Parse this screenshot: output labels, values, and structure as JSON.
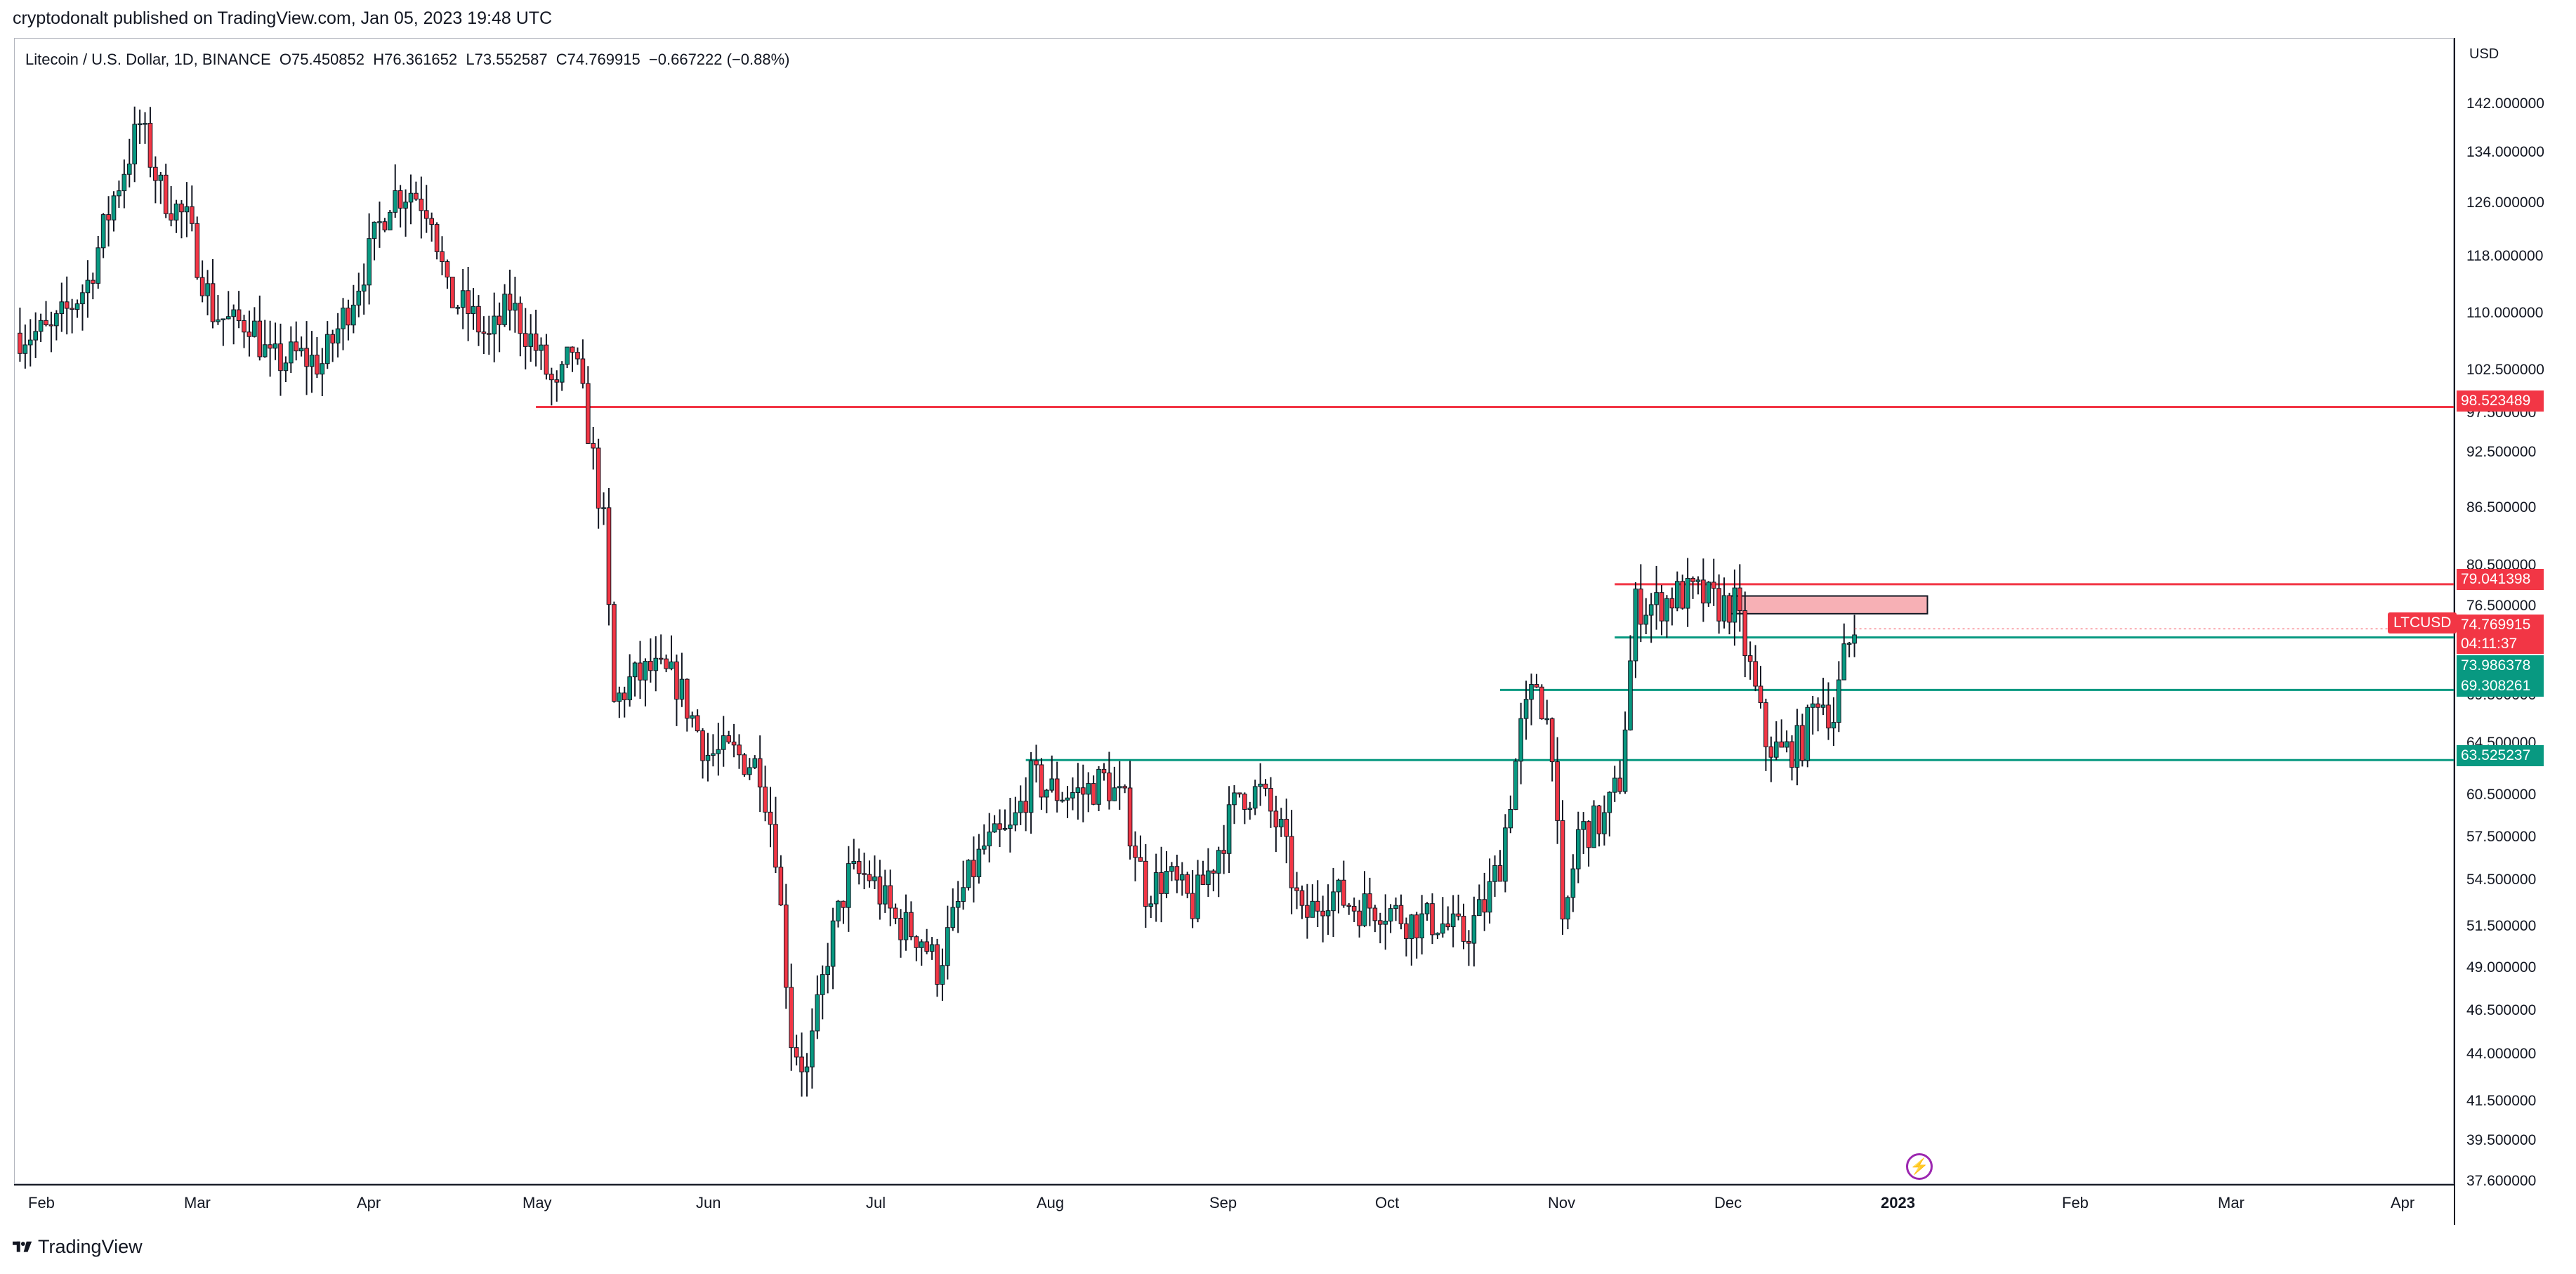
{
  "header": {
    "published": "cryptodonalt published on TradingView.com, Jan 05, 2023 19:48 UTC"
  },
  "legend": {
    "text": "Litecoin / U.S. Dollar, 1D, BINANCE  O75.450852  H76.361652  L73.552587  C74.769915  −0.667222 (−0.88%)"
  },
  "price_axis": {
    "currency": "USD",
    "ticks": [
      "142.000000",
      "134.000000",
      "126.000000",
      "118.000000",
      "110.000000",
      "102.500000",
      "97.500000",
      "92.500000",
      "86.500000",
      "80.500000",
      "76.500000",
      "69.500000",
      "64.500000",
      "60.500000",
      "57.500000",
      "54.500000",
      "51.500000",
      "49.000000",
      "46.500000",
      "44.000000",
      "41.500000",
      "39.500000",
      "37.600000"
    ]
  },
  "time_axis": {
    "labels": [
      "Feb",
      "Mar",
      "Apr",
      "May",
      "Jun",
      "Jul",
      "Aug",
      "Sep",
      "Oct",
      "Nov",
      "Dec",
      "2023",
      "Feb",
      "Mar",
      "Apr"
    ]
  },
  "levels": [
    {
      "label": "98.523489",
      "color": "#f23645"
    },
    {
      "label": "79.041398",
      "color": "#f23645"
    },
    {
      "label": "73.986378",
      "color": "#089981"
    },
    {
      "label": "69.308261",
      "color": "#089981"
    },
    {
      "label": "63.525237",
      "color": "#089981"
    }
  ],
  "current_price": {
    "ticker": "LTCUSD",
    "price": "74.769915",
    "countdown": "04:11:37",
    "color": "#f23645"
  },
  "footer": {
    "brand": "TradingView"
  },
  "chart_data": {
    "type": "candlestick",
    "title": "Litecoin / U.S. Dollar, 1D, BINANCE",
    "ylabel": "USD",
    "y_scale": "log",
    "ylim": [
      37.6,
      150
    ],
    "x_range": [
      "2022-01-17",
      "2023-04-30"
    ],
    "colors": {
      "up": "#089981",
      "down": "#f23645",
      "bar_outline": "#131722"
    },
    "horizontal_levels": [
      {
        "price": 98.523489,
        "color": "#f23645",
        "from": "2022-04-27"
      },
      {
        "price": 79.041398,
        "color": "#f23645",
        "from": "2022-11-20"
      },
      {
        "price": 73.986378,
        "color": "#089981",
        "from": "2022-11-20"
      },
      {
        "price": 69.308261,
        "color": "#089981",
        "from": "2022-10-29"
      },
      {
        "price": 63.525237,
        "color": "#089981",
        "from": "2022-07-30"
      }
    ],
    "zone": {
      "from": "2022-12-12",
      "to": "2023-01-19",
      "low": 76.2,
      "high": 77.9,
      "color": "#f7b0b5"
    },
    "price_path": [
      [
        "2022-01-18",
        108
      ],
      [
        "2022-01-24",
        108
      ],
      [
        "2022-01-31",
        115
      ],
      [
        "2022-02-05",
        128
      ],
      [
        "2022-02-10",
        140
      ],
      [
        "2022-02-14",
        129
      ],
      [
        "2022-02-19",
        124
      ],
      [
        "2022-02-24",
        111
      ],
      [
        "2022-02-28",
        109
      ],
      [
        "2022-03-03",
        110
      ],
      [
        "2022-03-07",
        104
      ],
      [
        "2022-03-12",
        105
      ],
      [
        "2022-03-17",
        104
      ],
      [
        "2022-03-21",
        110
      ],
      [
        "2022-03-26",
        119
      ],
      [
        "2022-03-30",
        128
      ],
      [
        "2022-04-03",
        129
      ],
      [
        "2022-04-07",
        126
      ],
      [
        "2022-04-10",
        113
      ],
      [
        "2022-04-14",
        111
      ],
      [
        "2022-04-18",
        107
      ],
      [
        "2022-04-22",
        112
      ],
      [
        "2022-04-27",
        106
      ],
      [
        "2022-05-01",
        100
      ],
      [
        "2022-05-04",
        106
      ],
      [
        "2022-05-07",
        96
      ],
      [
        "2022-05-10",
        85
      ],
      [
        "2022-05-12",
        68
      ],
      [
        "2022-05-15",
        70
      ],
      [
        "2022-05-19",
        71
      ],
      [
        "2022-05-24",
        70
      ],
      [
        "2022-05-30",
        64
      ],
      [
        "2022-06-04",
        64
      ],
      [
        "2022-06-09",
        63
      ],
      [
        "2022-06-12",
        57
      ],
      [
        "2022-06-15",
        45
      ],
      [
        "2022-06-18",
        43
      ],
      [
        "2022-06-22",
        50
      ],
      [
        "2022-06-26",
        55
      ],
      [
        "2022-06-30",
        55
      ],
      [
        "2022-07-05",
        52
      ],
      [
        "2022-07-10",
        51
      ],
      [
        "2022-07-13",
        49
      ],
      [
        "2022-07-18",
        54
      ],
      [
        "2022-07-22",
        57
      ],
      [
        "2022-07-27",
        58
      ],
      [
        "2022-07-31",
        62
      ],
      [
        "2022-08-05",
        61
      ],
      [
        "2022-08-10",
        61
      ],
      [
        "2022-08-14",
        62
      ],
      [
        "2022-08-18",
        60
      ],
      [
        "2022-08-22",
        54
      ],
      [
        "2022-08-26",
        55
      ],
      [
        "2022-08-31",
        53
      ],
      [
        "2022-09-04",
        56
      ],
      [
        "2022-09-09",
        61
      ],
      [
        "2022-09-13",
        61
      ],
      [
        "2022-09-17",
        58
      ],
      [
        "2022-09-21",
        52
      ],
      [
        "2022-09-26",
        54
      ],
      [
        "2022-10-01",
        53
      ],
      [
        "2022-10-06",
        53
      ],
      [
        "2022-10-12",
        52
      ],
      [
        "2022-10-17",
        52
      ],
      [
        "2022-10-22",
        51
      ],
      [
        "2022-10-26",
        53
      ],
      [
        "2022-10-29",
        56
      ],
      [
        "2022-11-02",
        66
      ],
      [
        "2022-11-05",
        70
      ],
      [
        "2022-11-08",
        65
      ],
      [
        "2022-11-10",
        51
      ],
      [
        "2022-11-13",
        58
      ],
      [
        "2022-11-18",
        59
      ],
      [
        "2022-11-21",
        62
      ],
      [
        "2022-11-24",
        77
      ],
      [
        "2022-11-28",
        77
      ],
      [
        "2022-12-02",
        78
      ],
      [
        "2022-12-06",
        78
      ],
      [
        "2022-12-10",
        77
      ],
      [
        "2022-12-13",
        77
      ],
      [
        "2022-12-16",
        71
      ],
      [
        "2022-12-19",
        65
      ],
      [
        "2022-12-22",
        64
      ],
      [
        "2022-12-26",
        65
      ],
      [
        "2022-12-29",
        69
      ],
      [
        "2023-01-01",
        67
      ],
      [
        "2023-01-03",
        72
      ],
      [
        "2023-01-05",
        74.77
      ]
    ]
  }
}
